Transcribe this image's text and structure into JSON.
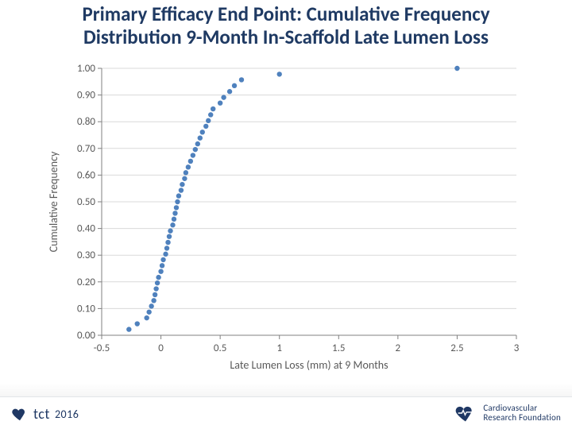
{
  "title": {
    "line1": "Primary Efficacy End Point: Cumulative Frequency",
    "line2": "Distribution 9-Month In-Scaffold Late Lumen Loss",
    "color": "#1f3a63",
    "fontsize": 25,
    "fontweight": 700
  },
  "chart": {
    "type": "scatter",
    "background_color": "#ffffff",
    "grid_color": "#d9d9d9",
    "axis_line_color": "#808080",
    "tick_label_color": "#595959",
    "tick_fontsize": 13,
    "axis_label_color": "#595959",
    "axis_label_fontsize": 14,
    "x": {
      "label": "Late Lumen Loss (mm) at 9 Months",
      "min": -0.5,
      "max": 3,
      "ticks": [
        -0.5,
        0,
        0.5,
        1,
        1.5,
        2,
        2.5,
        3
      ]
    },
    "y": {
      "label": "Cumulative Frequency",
      "min": 0.0,
      "max": 1.0,
      "ticks": [
        0.0,
        0.1,
        0.2,
        0.3,
        0.4,
        0.5,
        0.6,
        0.7,
        0.8,
        0.9,
        1.0
      ],
      "tick_labels": [
        "0.00",
        "0.10",
        "0.20",
        "0.30",
        "0.40",
        "0.50",
        "0.60",
        "0.70",
        "0.80",
        "0.90",
        "1.00"
      ]
    },
    "marker": {
      "color": "#4f81bd",
      "radius": 3.2
    },
    "data": [
      {
        "x": -0.27,
        "y": 0.022
      },
      {
        "x": -0.2,
        "y": 0.043
      },
      {
        "x": -0.12,
        "y": 0.065
      },
      {
        "x": -0.1,
        "y": 0.087
      },
      {
        "x": -0.08,
        "y": 0.109
      },
      {
        "x": -0.06,
        "y": 0.13
      },
      {
        "x": -0.05,
        "y": 0.152
      },
      {
        "x": -0.04,
        "y": 0.174
      },
      {
        "x": -0.03,
        "y": 0.196
      },
      {
        "x": -0.02,
        "y": 0.217
      },
      {
        "x": 0.0,
        "y": 0.239
      },
      {
        "x": 0.01,
        "y": 0.261
      },
      {
        "x": 0.02,
        "y": 0.283
      },
      {
        "x": 0.04,
        "y": 0.304
      },
      {
        "x": 0.05,
        "y": 0.326
      },
      {
        "x": 0.06,
        "y": 0.348
      },
      {
        "x": 0.07,
        "y": 0.37
      },
      {
        "x": 0.08,
        "y": 0.391
      },
      {
        "x": 0.1,
        "y": 0.413
      },
      {
        "x": 0.11,
        "y": 0.435
      },
      {
        "x": 0.12,
        "y": 0.457
      },
      {
        "x": 0.13,
        "y": 0.478
      },
      {
        "x": 0.14,
        "y": 0.5
      },
      {
        "x": 0.15,
        "y": 0.522
      },
      {
        "x": 0.17,
        "y": 0.543
      },
      {
        "x": 0.18,
        "y": 0.565
      },
      {
        "x": 0.2,
        "y": 0.587
      },
      {
        "x": 0.21,
        "y": 0.609
      },
      {
        "x": 0.23,
        "y": 0.63
      },
      {
        "x": 0.25,
        "y": 0.652
      },
      {
        "x": 0.27,
        "y": 0.674
      },
      {
        "x": 0.29,
        "y": 0.696
      },
      {
        "x": 0.31,
        "y": 0.717
      },
      {
        "x": 0.33,
        "y": 0.739
      },
      {
        "x": 0.35,
        "y": 0.761
      },
      {
        "x": 0.38,
        "y": 0.783
      },
      {
        "x": 0.4,
        "y": 0.804
      },
      {
        "x": 0.42,
        "y": 0.826
      },
      {
        "x": 0.44,
        "y": 0.848
      },
      {
        "x": 0.5,
        "y": 0.87
      },
      {
        "x": 0.53,
        "y": 0.891
      },
      {
        "x": 0.58,
        "y": 0.913
      },
      {
        "x": 0.62,
        "y": 0.935
      },
      {
        "x": 0.68,
        "y": 0.957
      },
      {
        "x": 1.0,
        "y": 0.978
      },
      {
        "x": 2.5,
        "y": 1.0
      }
    ]
  },
  "footer": {
    "left_logo": {
      "heart_color": "#1f3864",
      "text": "tct",
      "year": "2016",
      "text_color": "#1f3864"
    },
    "right_logo": {
      "heart_color": "#1f3864",
      "line1": "Cardiovascular",
      "line2": "Research Foundation",
      "text_color": "#1f3864"
    }
  }
}
